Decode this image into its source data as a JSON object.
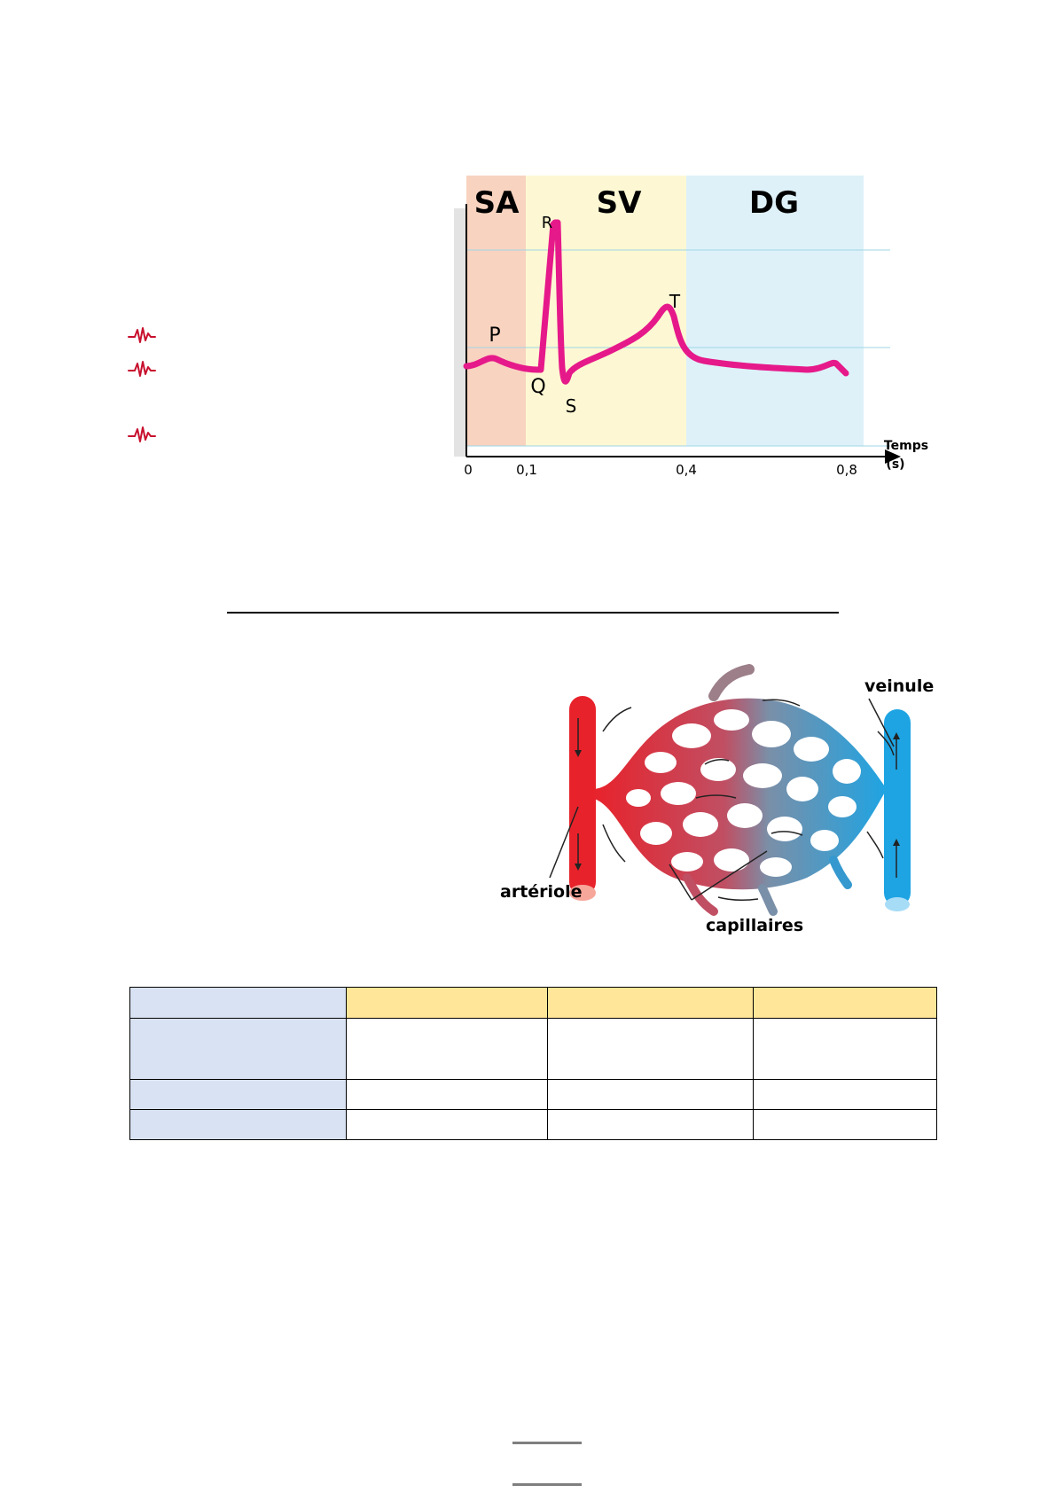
{
  "bullets": [
    {
      "icon": "heartbeat-pulse-icon"
    },
    {
      "icon": "heartbeat-pulse-icon"
    },
    {
      "icon": "heartbeat-pulse-icon"
    }
  ],
  "ecg_figure": {
    "zones": [
      {
        "label": "SA",
        "color": "#f8d3c0"
      },
      {
        "label": "SV",
        "color": "#fdf8d3"
      },
      {
        "label": "DG",
        "color": "#def1f9"
      }
    ],
    "waves": {
      "p": "P",
      "q": "Q",
      "r": "R",
      "s": "S",
      "t": "T"
    },
    "axis_label_line1": "Temps",
    "axis_label_line2": "(s)",
    "ticks": [
      "0",
      "0,1",
      "0,4",
      "0,8"
    ],
    "trace_color": "#e6198a"
  },
  "micro_figure": {
    "labels": {
      "arteriole": "artériole",
      "capillaries": "capillaires",
      "venule": "veinule"
    },
    "colors": {
      "arteriole": "#e8222b",
      "venule": "#1ea4e3"
    }
  },
  "comparison_table": {
    "header_color": "#ffe699",
    "label_color": "#d9e2f3",
    "rows": 3,
    "columns": 3
  }
}
